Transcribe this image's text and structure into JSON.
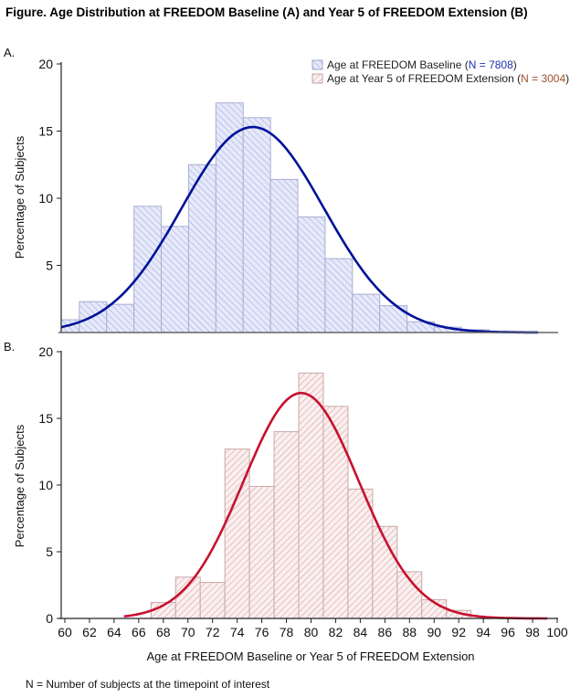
{
  "title": "Figure. Age Distribution at FREEDOM Baseline (A) and Year 5 of FREEDOM Extension (B)",
  "footnote": "N = Number of subjects at the timepoint of interest",
  "xlabel": "Age at FREEDOM Baseline or Year 5 of FREEDOM Extension",
  "legend": {
    "items": [
      {
        "label": "Age at FREEDOM Baseline (",
        "n_text": "N = 7808",
        "close": ")",
        "n_color": "#1f2fb0"
      },
      {
        "label": "Age at Year 5 of FREEDOM Extension (",
        "n_text": "N = 3004",
        "close": ")",
        "n_color": "#a0522d"
      }
    ]
  },
  "chart_data": [
    {
      "type": "bar",
      "panel_label": "A.",
      "series_name": "Age at FREEDOM Baseline",
      "n": 7808,
      "ylabel": "Percentage of Subjects",
      "ylim": [
        0,
        20
      ],
      "yticks": [
        5,
        10,
        15,
        20
      ],
      "xlim": [
        59.67,
        96
      ],
      "bin_edges": [
        59.67,
        61,
        63,
        65,
        67,
        69,
        71,
        73,
        75,
        77,
        79,
        81,
        83,
        85,
        87,
        89,
        91,
        93
      ],
      "values": [
        0.95,
        2.3,
        2.1,
        9.4,
        7.9,
        12.5,
        17.1,
        16.0,
        11.4,
        8.6,
        5.5,
        2.85,
        2.0,
        0.8,
        0.4,
        0.2,
        0.0
      ],
      "curve": {
        "type": "normal",
        "mean": 73.7,
        "peak": 15.3,
        "sd": 5.2,
        "x_start": 59.67,
        "x_end": 94.6,
        "color": "#00129a"
      },
      "bar_fill": "#e6e9fa",
      "bar_stroke": "#a9aed0",
      "hatch_color": "#9aa3d8"
    },
    {
      "type": "bar",
      "panel_label": "B.",
      "series_name": "Age at Year 5 of FREEDOM Extension",
      "n": 3004,
      "ylabel": "Percentage of Subjects",
      "xlabel": "Age at FREEDOM Baseline or Year 5 of FREEDOM Extension",
      "ylim": [
        0,
        20
      ],
      "yticks": [
        0,
        5,
        10,
        15,
        20
      ],
      "xlim": [
        60,
        100
      ],
      "xticks": [
        60,
        62,
        64,
        66,
        68,
        70,
        72,
        74,
        76,
        78,
        80,
        82,
        84,
        86,
        88,
        90,
        92,
        94,
        96,
        98,
        100
      ],
      "bin_edges": [
        67,
        69,
        71,
        73,
        75,
        77,
        79,
        81,
        83,
        85,
        87,
        89,
        91,
        93
      ],
      "values": [
        1.2,
        3.1,
        2.7,
        12.7,
        9.9,
        14.0,
        18.4,
        15.9,
        9.7,
        6.9,
        3.5,
        1.4,
        0.6
      ],
      "curve": {
        "type": "normal",
        "mean": 79.2,
        "peak": 16.9,
        "sd": 4.7,
        "x_start": 64.8,
        "x_end": 99.2,
        "color": "#c8102e"
      },
      "bar_fill": "#fbeeee",
      "bar_stroke": "#c9a9a9",
      "hatch_color": "#c89a9a"
    }
  ]
}
